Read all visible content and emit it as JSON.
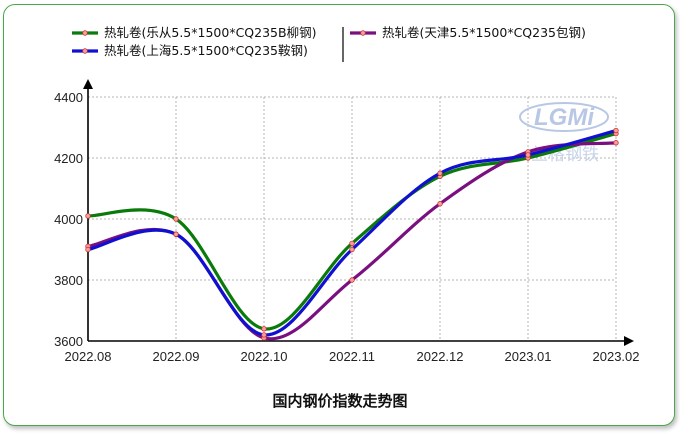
{
  "chart_data": {
    "type": "line",
    "title": "国内钢价指数走势图",
    "categories": [
      "2022.08",
      "2022.09",
      "2022.10",
      "2022.11",
      "2022.12",
      "2023.01",
      "2023.02"
    ],
    "ylim": [
      3600,
      4400
    ],
    "yticks": [
      3600,
      3800,
      4000,
      4200,
      4400
    ],
    "grid": true,
    "legend_position": "top",
    "series": [
      {
        "name": "热轧卷(乐从5.5*1500*CQ235B柳钢)",
        "color": "#0a7a0a",
        "values": [
          4010,
          4000,
          3640,
          3920,
          4140,
          4200,
          4280
        ]
      },
      {
        "name": "热轧卷(天津5.5*1500*CQ235包钢)",
        "color": "#7a1080",
        "values": [
          3910,
          3950,
          3610,
          3800,
          4050,
          4220,
          4250
        ]
      },
      {
        "name": "热轧卷(上海5.5*1500*CQ235鞍钢)",
        "color": "#1010d0",
        "values": [
          3900,
          3950,
          3620,
          3900,
          4150,
          4210,
          4290
        ]
      }
    ]
  },
  "watermark": {
    "text": "LGMi",
    "subtext": "兰格钢铁"
  }
}
